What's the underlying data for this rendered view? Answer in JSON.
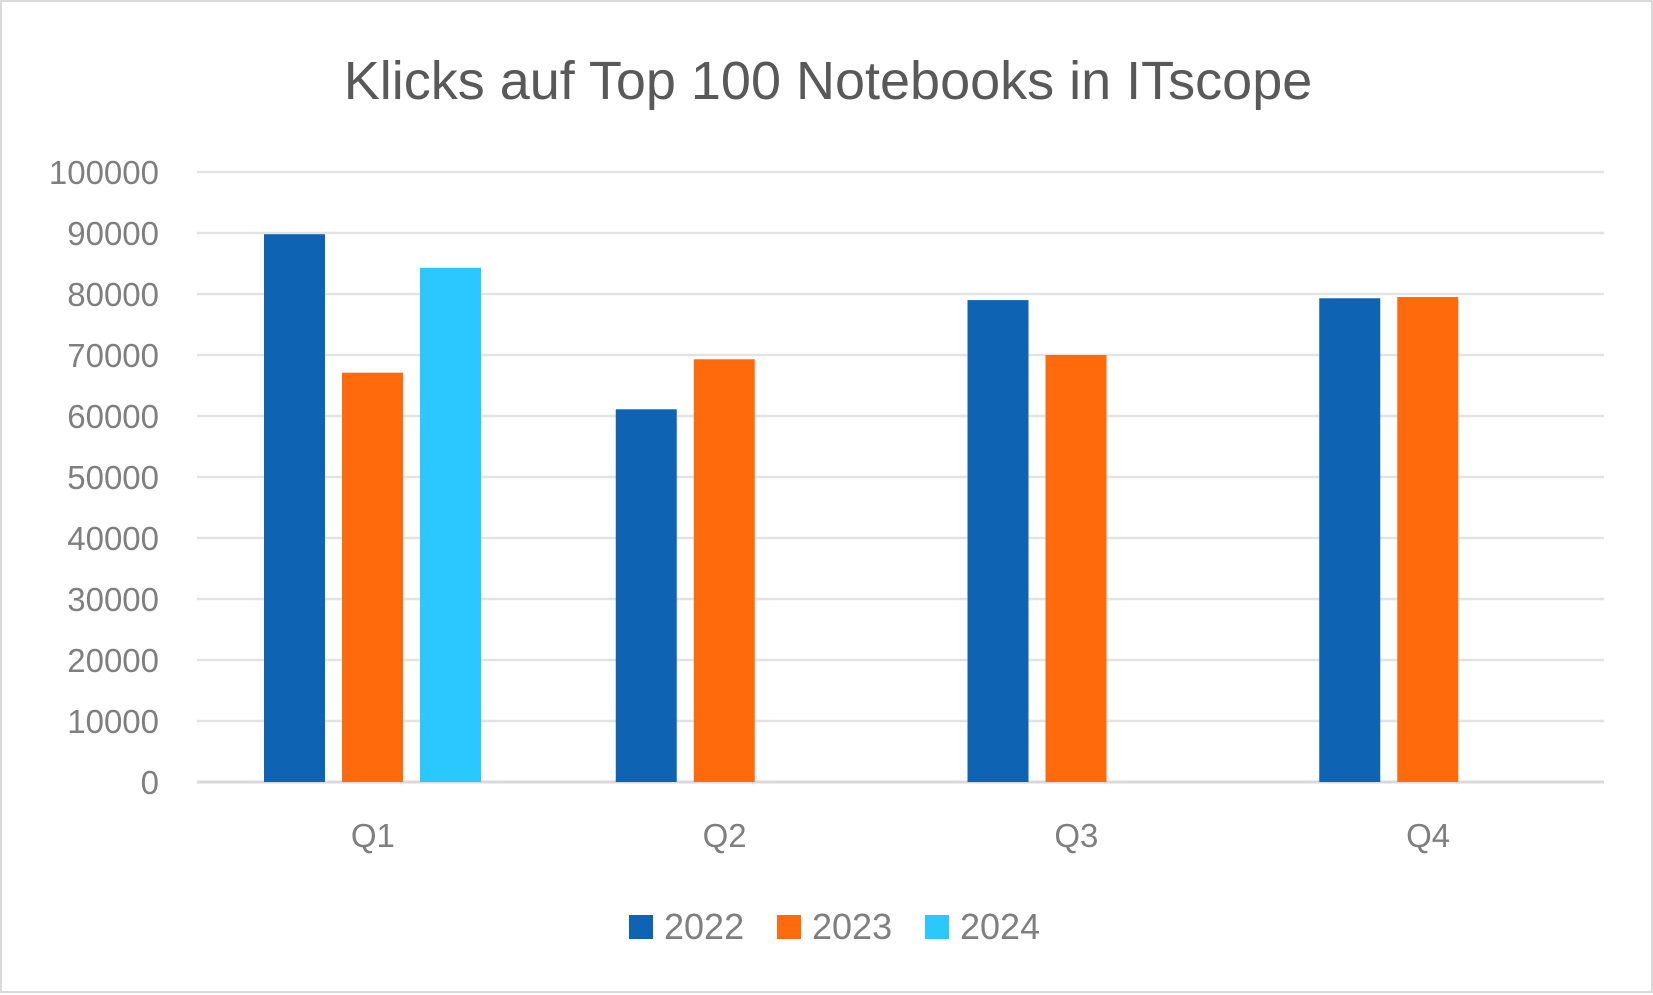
{
  "chart_data": {
    "type": "bar",
    "title": "Klicks auf Top 100 Notebooks in ITscope",
    "categories": [
      "Q1",
      "Q2",
      "Q3",
      "Q4"
    ],
    "series": [
      {
        "name": "2022",
        "color": "#0F63B3",
        "values": [
          89800,
          61100,
          79000,
          79300
        ]
      },
      {
        "name": "2023",
        "color": "#FF6A0D",
        "values": [
          67100,
          69300,
          70000,
          79500
        ]
      },
      {
        "name": "2024",
        "color": "#2BC8FF",
        "values": [
          84300,
          null,
          null,
          null
        ]
      }
    ],
    "xlabel": "",
    "ylabel": "",
    "ylim": [
      0,
      100000
    ],
    "yticks": [
      "0",
      "10000",
      "20000",
      "30000",
      "40000",
      "50000",
      "60000",
      "70000",
      "80000",
      "90000",
      "100000"
    ],
    "grid": true,
    "legend_position": "bottom"
  }
}
